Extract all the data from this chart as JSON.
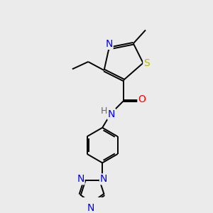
{
  "background_color": "#ebebeb",
  "atom_colors": {
    "N": "#0000ee",
    "S": "#b8b800",
    "O": "#ff0000",
    "C": "#000000",
    "H": "#666666"
  },
  "bond_color": "#000000",
  "bond_width": 1.4,
  "figsize": [
    3.0,
    3.0
  ],
  "dpi": 100
}
